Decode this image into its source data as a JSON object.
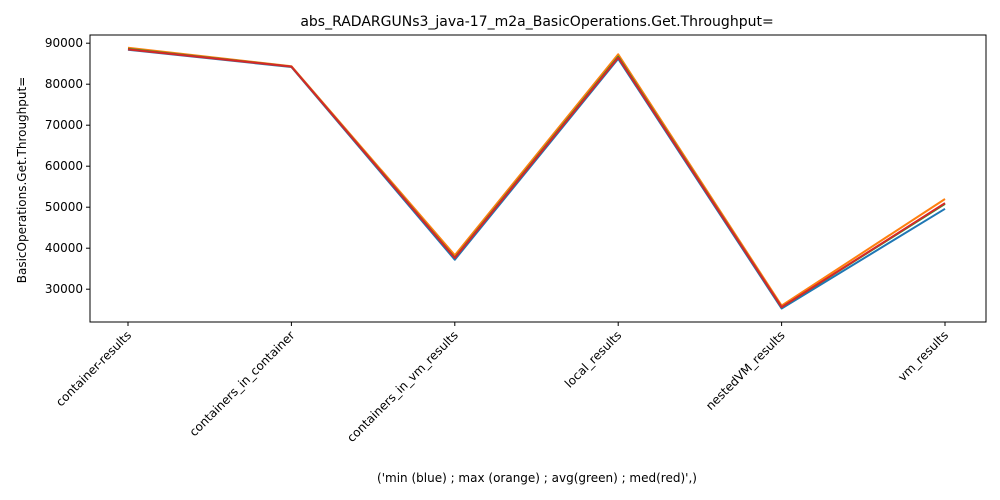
{
  "chart_data": {
    "type": "line",
    "title": "abs_RADARGUNs3_java-17_m2a_BasicOperations.Get.Throughput=",
    "xlabel": "('min (blue) ; max (orange) ; avg(green) ; med(red)',)",
    "ylabel": "BasicOperations.Get.Throughput=",
    "categories": [
      "container-results",
      "containers_in_container",
      "containers_in_vm_results",
      "local_results",
      "nestedVM_results",
      "vm_results"
    ],
    "ylim": [
      22000,
      92000
    ],
    "yticks": [
      30000,
      40000,
      50000,
      60000,
      70000,
      80000,
      90000
    ],
    "ytick_labels": [
      "30000",
      "40000",
      "50000",
      "60000",
      "70000",
      "80000",
      "90000"
    ],
    "grid": false,
    "series": [
      {
        "color": "#1f77b4",
        "values": [
          88400,
          84200,
          37200,
          86200,
          25300,
          49600
        ]
      },
      {
        "color": "#ff7f0e",
        "values": [
          88900,
          84400,
          38300,
          87300,
          26000,
          52000
        ]
      },
      {
        "color": "#2ca02c",
        "values": [
          88600,
          84300,
          37700,
          86700,
          25600,
          50800
        ]
      },
      {
        "color": "#d62728",
        "values": [
          88500,
          84300,
          37600,
          86500,
          25600,
          51000
        ]
      }
    ]
  }
}
